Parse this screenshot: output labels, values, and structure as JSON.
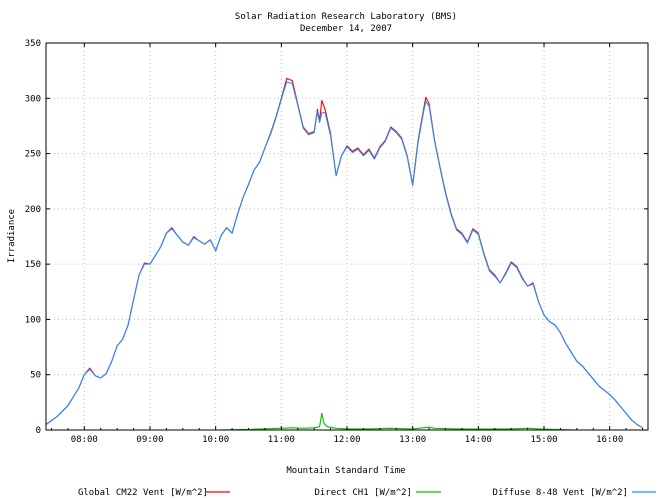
{
  "chart_data": {
    "type": "line",
    "title": "Solar Radiation Research Laboratory (BMS)",
    "subtitle": "December 14, 2007",
    "xlabel": "Mountain Standard Time",
    "ylabel": "Irradiance",
    "xlim": [
      "07:25",
      "16:35"
    ],
    "ylim": [
      0,
      350
    ],
    "grid": true,
    "legend_position": "bottom",
    "y_ticks": [
      "0",
      "50",
      "100",
      "150",
      "200",
      "250",
      "300",
      "350"
    ],
    "x_ticks": [
      "08:00",
      "09:00",
      "10:00",
      "11:00",
      "12:00",
      "13:00",
      "14:00",
      "15:00",
      "16:00"
    ],
    "series": [
      {
        "name": "Global CM22 Vent [W/m^2]",
        "color": "#ff0000",
        "points": [
          [
            "07:25",
            5
          ],
          [
            "07:35",
            12
          ],
          [
            "07:45",
            22
          ],
          [
            "07:55",
            38
          ],
          [
            "08:00",
            50
          ],
          [
            "08:05",
            56
          ],
          [
            "08:10",
            49
          ],
          [
            "08:15",
            47
          ],
          [
            "08:20",
            51
          ],
          [
            "08:25",
            62
          ],
          [
            "08:30",
            76
          ],
          [
            "08:35",
            82
          ],
          [
            "08:40",
            95
          ],
          [
            "08:45",
            118
          ],
          [
            "08:50",
            140
          ],
          [
            "08:55",
            151
          ],
          [
            "09:00",
            150
          ],
          [
            "09:05",
            158
          ],
          [
            "09:10",
            166
          ],
          [
            "09:15",
            178
          ],
          [
            "09:20",
            183
          ],
          [
            "09:25",
            176
          ],
          [
            "09:30",
            170
          ],
          [
            "09:35",
            167
          ],
          [
            "09:40",
            175
          ],
          [
            "09:45",
            171
          ],
          [
            "09:50",
            168
          ],
          [
            "09:55",
            172
          ],
          [
            "10:00",
            162
          ],
          [
            "10:05",
            176
          ],
          [
            "10:10",
            183
          ],
          [
            "10:15",
            178
          ],
          [
            "10:20",
            195
          ],
          [
            "10:25",
            210
          ],
          [
            "10:30",
            222
          ],
          [
            "10:35",
            235
          ],
          [
            "10:40",
            242
          ],
          [
            "10:45",
            255
          ],
          [
            "10:50",
            268
          ],
          [
            "10:55",
            283
          ],
          [
            "11:00",
            300
          ],
          [
            "11:05",
            318
          ],
          [
            "11:10",
            316
          ],
          [
            "11:15",
            295
          ],
          [
            "11:20",
            274
          ],
          [
            "11:25",
            268
          ],
          [
            "11:30",
            270
          ],
          [
            "11:33",
            290
          ],
          [
            "11:35",
            280
          ],
          [
            "11:37",
            298
          ],
          [
            "11:40",
            290
          ],
          [
            "11:45",
            268
          ],
          [
            "11:50",
            230
          ],
          [
            "11:55",
            248
          ],
          [
            "12:00",
            257
          ],
          [
            "12:05",
            252
          ],
          [
            "12:10",
            255
          ],
          [
            "12:15",
            249
          ],
          [
            "12:20",
            254
          ],
          [
            "12:25",
            246
          ],
          [
            "12:30",
            256
          ],
          [
            "12:35",
            262
          ],
          [
            "12:40",
            274
          ],
          [
            "12:45",
            270
          ],
          [
            "12:50",
            264
          ],
          [
            "12:55",
            248
          ],
          [
            "13:00",
            222
          ],
          [
            "13:05",
            262
          ],
          [
            "13:10",
            290
          ],
          [
            "13:12",
            301
          ],
          [
            "13:15",
            295
          ],
          [
            "13:20",
            262
          ],
          [
            "13:25",
            238
          ],
          [
            "13:30",
            215
          ],
          [
            "13:35",
            196
          ],
          [
            "13:40",
            182
          ],
          [
            "13:45",
            178
          ],
          [
            "13:50",
            170
          ],
          [
            "13:55",
            182
          ],
          [
            "14:00",
            178
          ],
          [
            "14:05",
            160
          ],
          [
            "14:10",
            145
          ],
          [
            "14:15",
            140
          ],
          [
            "14:20",
            133
          ],
          [
            "14:25",
            142
          ],
          [
            "14:30",
            152
          ],
          [
            "14:35",
            148
          ],
          [
            "14:40",
            138
          ],
          [
            "14:45",
            130
          ],
          [
            "14:50",
            133
          ],
          [
            "14:55",
            116
          ],
          [
            "15:00",
            104
          ],
          [
            "15:05",
            98
          ],
          [
            "15:10",
            95
          ],
          [
            "15:15",
            88
          ],
          [
            "15:20",
            78
          ],
          [
            "15:25",
            70
          ],
          [
            "15:30",
            62
          ],
          [
            "15:35",
            58
          ],
          [
            "15:40",
            52
          ],
          [
            "15:45",
            46
          ],
          [
            "15:50",
            40
          ],
          [
            "15:55",
            36
          ],
          [
            "16:00",
            32
          ],
          [
            "16:05",
            27
          ],
          [
            "16:10",
            21
          ],
          [
            "16:15",
            15
          ],
          [
            "16:20",
            9
          ],
          [
            "16:25",
            5
          ],
          [
            "16:30",
            2
          ]
        ]
      },
      {
        "name": "Direct CH1 [W/m^2]",
        "color": "#00c000",
        "points": [
          [
            "07:25",
            0
          ],
          [
            "08:00",
            0
          ],
          [
            "09:00",
            0
          ],
          [
            "10:00",
            0
          ],
          [
            "10:30",
            0.5
          ],
          [
            "11:00",
            1.5
          ],
          [
            "11:10",
            2
          ],
          [
            "11:20",
            1.5
          ],
          [
            "11:30",
            2
          ],
          [
            "11:35",
            3
          ],
          [
            "11:37",
            15
          ],
          [
            "11:39",
            6
          ],
          [
            "11:42",
            3
          ],
          [
            "11:50",
            1.5
          ],
          [
            "12:00",
            1
          ],
          [
            "12:20",
            1
          ],
          [
            "12:40",
            1.5
          ],
          [
            "13:00",
            1
          ],
          [
            "13:10",
            2
          ],
          [
            "13:15",
            2.5
          ],
          [
            "13:20",
            1.5
          ],
          [
            "13:40",
            1
          ],
          [
            "14:00",
            0.8
          ],
          [
            "14:30",
            1
          ],
          [
            "14:45",
            1.5
          ],
          [
            "14:55",
            1
          ],
          [
            "15:10",
            0.5
          ],
          [
            "15:30",
            0
          ],
          [
            "16:30",
            0
          ]
        ]
      },
      {
        "name": "Diffuse 8-48 Vent [W/m^2]",
        "color": "#1e90ff",
        "points": [
          [
            "07:25",
            5
          ],
          [
            "07:35",
            12
          ],
          [
            "07:45",
            22
          ],
          [
            "07:55",
            38
          ],
          [
            "08:00",
            50
          ],
          [
            "08:05",
            55
          ],
          [
            "08:10",
            49
          ],
          [
            "08:15",
            47
          ],
          [
            "08:20",
            51
          ],
          [
            "08:25",
            62
          ],
          [
            "08:30",
            76
          ],
          [
            "08:35",
            82
          ],
          [
            "08:40",
            95
          ],
          [
            "08:45",
            118
          ],
          [
            "08:50",
            140
          ],
          [
            "08:55",
            150
          ],
          [
            "09:00",
            150
          ],
          [
            "09:05",
            158
          ],
          [
            "09:10",
            166
          ],
          [
            "09:15",
            178
          ],
          [
            "09:20",
            182
          ],
          [
            "09:25",
            176
          ],
          [
            "09:30",
            170
          ],
          [
            "09:35",
            167
          ],
          [
            "09:40",
            174
          ],
          [
            "09:45",
            171
          ],
          [
            "09:50",
            168
          ],
          [
            "09:55",
            172
          ],
          [
            "10:00",
            162
          ],
          [
            "10:05",
            176
          ],
          [
            "10:10",
            183
          ],
          [
            "10:15",
            178
          ],
          [
            "10:20",
            195
          ],
          [
            "10:25",
            210
          ],
          [
            "10:30",
            222
          ],
          [
            "10:35",
            235
          ],
          [
            "10:40",
            242
          ],
          [
            "10:45",
            255
          ],
          [
            "10:50",
            267
          ],
          [
            "10:55",
            282
          ],
          [
            "11:00",
            299
          ],
          [
            "11:05",
            315
          ],
          [
            "11:10",
            313
          ],
          [
            "11:15",
            294
          ],
          [
            "11:20",
            273
          ],
          [
            "11:25",
            267
          ],
          [
            "11:30",
            269
          ],
          [
            "11:33",
            288
          ],
          [
            "11:35",
            278
          ],
          [
            "11:37",
            287
          ],
          [
            "11:40",
            287
          ],
          [
            "11:45",
            266
          ],
          [
            "11:50",
            230
          ],
          [
            "11:55",
            248
          ],
          [
            "12:00",
            256
          ],
          [
            "12:05",
            251
          ],
          [
            "12:10",
            254
          ],
          [
            "12:15",
            248
          ],
          [
            "12:20",
            253
          ],
          [
            "12:25",
            245
          ],
          [
            "12:30",
            255
          ],
          [
            "12:35",
            261
          ],
          [
            "12:40",
            273
          ],
          [
            "12:45",
            269
          ],
          [
            "12:50",
            263
          ],
          [
            "12:55",
            247
          ],
          [
            "13:00",
            221
          ],
          [
            "13:05",
            260
          ],
          [
            "13:10",
            288
          ],
          [
            "13:12",
            297
          ],
          [
            "13:15",
            293
          ],
          [
            "13:20",
            261
          ],
          [
            "13:25",
            237
          ],
          [
            "13:30",
            214
          ],
          [
            "13:35",
            195
          ],
          [
            "13:40",
            181
          ],
          [
            "13:45",
            177
          ],
          [
            "13:50",
            169
          ],
          [
            "13:55",
            181
          ],
          [
            "14:00",
            177
          ],
          [
            "14:05",
            159
          ],
          [
            "14:10",
            144
          ],
          [
            "14:15",
            139
          ],
          [
            "14:20",
            133
          ],
          [
            "14:25",
            141
          ],
          [
            "14:30",
            151
          ],
          [
            "14:35",
            147
          ],
          [
            "14:40",
            137
          ],
          [
            "14:45",
            130
          ],
          [
            "14:50",
            132
          ],
          [
            "14:55",
            116
          ],
          [
            "15:00",
            104
          ],
          [
            "15:05",
            98
          ],
          [
            "15:10",
            95
          ],
          [
            "15:15",
            88
          ],
          [
            "15:20",
            78
          ],
          [
            "15:25",
            70
          ],
          [
            "15:30",
            62
          ],
          [
            "15:35",
            58
          ],
          [
            "15:40",
            52
          ],
          [
            "15:45",
            46
          ],
          [
            "15:50",
            40
          ],
          [
            "15:55",
            36
          ],
          [
            "16:00",
            32
          ],
          [
            "16:05",
            27
          ],
          [
            "16:10",
            21
          ],
          [
            "16:15",
            15
          ],
          [
            "16:20",
            9
          ],
          [
            "16:25",
            5
          ],
          [
            "16:30",
            2
          ]
        ]
      }
    ]
  }
}
